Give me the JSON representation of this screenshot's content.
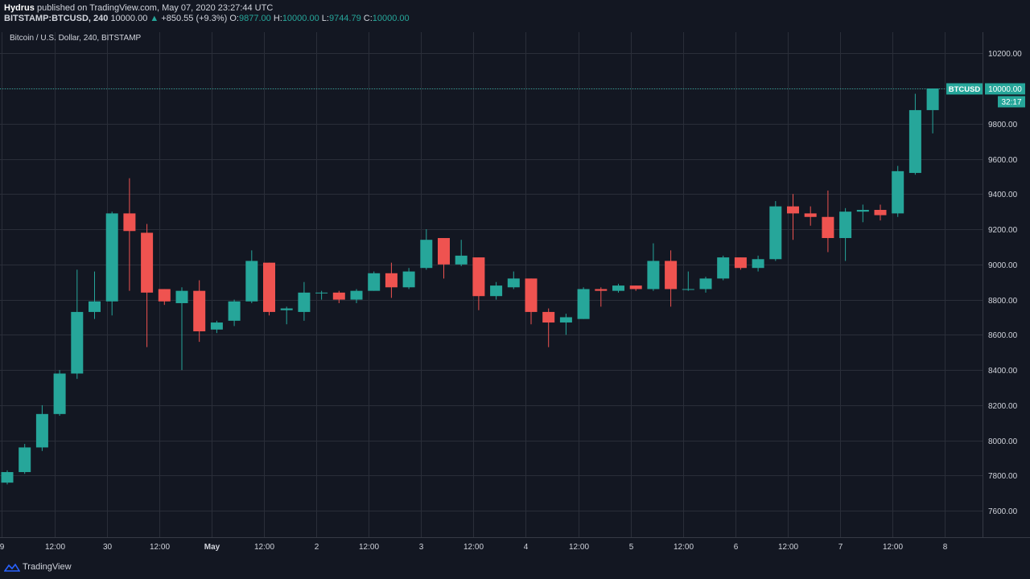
{
  "header": {
    "author": "Hydrus",
    "published": " published on TradingView.com, May 07, 2020 23:27:44 UTC",
    "symbol": "BITSTAMP:BTCUSD, 240",
    "last": "10000.00",
    "arrow": "▲",
    "change": "+850.55 (+9.3%)",
    "o_label": "O:",
    "o_value": "9877.00",
    "h_label": "H:",
    "h_value": "10000.00",
    "l_label": "L:",
    "l_value": "9744.79",
    "c_label": "C:",
    "c_value": "10000.00"
  },
  "chart_title": "Bitcoin / U.S. Dollar, 240, BITSTAMP",
  "price_tag": {
    "symbol": "BTCUSD",
    "value": "10000.00",
    "countdown": "32:17"
  },
  "footer": {
    "brand": "TradingView"
  },
  "colors": {
    "up": "#26a69a",
    "down": "#ef5350",
    "background": "#131722",
    "grid": "#2a2e39"
  },
  "chart_data": {
    "type": "candlestick",
    "ylim": [
      7450,
      10320
    ],
    "yticks": [
      7600,
      7800,
      8000,
      8200,
      8400,
      8600,
      8800,
      9000,
      9200,
      9400,
      9600,
      9800,
      10000,
      10200
    ],
    "ytick_labels": [
      "7600.00",
      "7800.00",
      "8000.00",
      "8200.00",
      "8400.00",
      "8600.00",
      "8800.00",
      "9000.00",
      "9200.00",
      "9400.00",
      "9600.00",
      "9800.00",
      "10000.00",
      "10200.00"
    ],
    "xticks": [
      {
        "i": -0.3,
        "label": "9"
      },
      {
        "i": 2.7,
        "label": "12:00"
      },
      {
        "i": 5.7,
        "label": "30"
      },
      {
        "i": 8.7,
        "label": "12:00"
      },
      {
        "i": 11.7,
        "label": "May"
      },
      {
        "i": 14.7,
        "label": "12:00"
      },
      {
        "i": 17.7,
        "label": "2"
      },
      {
        "i": 20.7,
        "label": "12:00"
      },
      {
        "i": 23.7,
        "label": "3"
      },
      {
        "i": 26.7,
        "label": "12:00"
      },
      {
        "i": 29.7,
        "label": "4"
      },
      {
        "i": 32.7,
        "label": "12:00"
      },
      {
        "i": 35.7,
        "label": "5"
      },
      {
        "i": 38.7,
        "label": "12:00"
      },
      {
        "i": 41.7,
        "label": "6"
      },
      {
        "i": 44.7,
        "label": "12:00"
      },
      {
        "i": 47.7,
        "label": "7"
      },
      {
        "i": 50.7,
        "label": "12:00"
      },
      {
        "i": 53.7,
        "label": "8"
      }
    ],
    "candles": [
      {
        "o": 7760,
        "h": 7830,
        "l": 7750,
        "c": 7820
      },
      {
        "o": 7820,
        "h": 7980,
        "l": 7810,
        "c": 7960
      },
      {
        "o": 7960,
        "h": 8200,
        "l": 7940,
        "c": 8150
      },
      {
        "o": 8150,
        "h": 8400,
        "l": 8140,
        "c": 8380
      },
      {
        "o": 8380,
        "h": 8970,
        "l": 8350,
        "c": 8730
      },
      {
        "o": 8730,
        "h": 8960,
        "l": 8690,
        "c": 8790
      },
      {
        "o": 8790,
        "h": 9300,
        "l": 8710,
        "c": 9290
      },
      {
        "o": 9290,
        "h": 9490,
        "l": 8850,
        "c": 9190
      },
      {
        "o": 9180,
        "h": 9230,
        "l": 8530,
        "c": 8840
      },
      {
        "o": 8860,
        "h": 8860,
        "l": 8770,
        "c": 8790
      },
      {
        "o": 8780,
        "h": 8870,
        "l": 8400,
        "c": 8850
      },
      {
        "o": 8850,
        "h": 8910,
        "l": 8560,
        "c": 8620
      },
      {
        "o": 8630,
        "h": 8680,
        "l": 8610,
        "c": 8670
      },
      {
        "o": 8680,
        "h": 8800,
        "l": 8650,
        "c": 8790
      },
      {
        "o": 8790,
        "h": 9080,
        "l": 8780,
        "c": 9020
      },
      {
        "o": 9010,
        "h": 9010,
        "l": 8710,
        "c": 8730
      },
      {
        "o": 8740,
        "h": 8760,
        "l": 8660,
        "c": 8750
      },
      {
        "o": 8730,
        "h": 8900,
        "l": 8680,
        "c": 8840
      },
      {
        "o": 8840,
        "h": 8850,
        "l": 8800,
        "c": 8840
      },
      {
        "o": 8840,
        "h": 8850,
        "l": 8780,
        "c": 8800
      },
      {
        "o": 8800,
        "h": 8860,
        "l": 8780,
        "c": 8850
      },
      {
        "o": 8850,
        "h": 8960,
        "l": 8850,
        "c": 8950
      },
      {
        "o": 8950,
        "h": 9010,
        "l": 8810,
        "c": 8870
      },
      {
        "o": 8870,
        "h": 8980,
        "l": 8860,
        "c": 8960
      },
      {
        "o": 8980,
        "h": 9200,
        "l": 8970,
        "c": 9140
      },
      {
        "o": 9150,
        "h": 9150,
        "l": 8920,
        "c": 9000
      },
      {
        "o": 9000,
        "h": 9140,
        "l": 8990,
        "c": 9050
      },
      {
        "o": 9040,
        "h": 9040,
        "l": 8740,
        "c": 8820
      },
      {
        "o": 8820,
        "h": 8900,
        "l": 8800,
        "c": 8880
      },
      {
        "o": 8870,
        "h": 8960,
        "l": 8860,
        "c": 8920
      },
      {
        "o": 8920,
        "h": 8920,
        "l": 8660,
        "c": 8730
      },
      {
        "o": 8730,
        "h": 8750,
        "l": 8530,
        "c": 8670
      },
      {
        "o": 8670,
        "h": 8720,
        "l": 8600,
        "c": 8700
      },
      {
        "o": 8690,
        "h": 8870,
        "l": 8690,
        "c": 8860
      },
      {
        "o": 8860,
        "h": 8870,
        "l": 8760,
        "c": 8850
      },
      {
        "o": 8850,
        "h": 8890,
        "l": 8840,
        "c": 8880
      },
      {
        "o": 8880,
        "h": 8880,
        "l": 8850,
        "c": 8860
      },
      {
        "o": 8860,
        "h": 9120,
        "l": 8850,
        "c": 9020
      },
      {
        "o": 9020,
        "h": 9080,
        "l": 8760,
        "c": 8860
      },
      {
        "o": 8860,
        "h": 8960,
        "l": 8850,
        "c": 8860
      },
      {
        "o": 8860,
        "h": 8930,
        "l": 8840,
        "c": 8920
      },
      {
        "o": 8920,
        "h": 9050,
        "l": 8910,
        "c": 9040
      },
      {
        "o": 9040,
        "h": 9040,
        "l": 8970,
        "c": 8980
      },
      {
        "o": 8980,
        "h": 9050,
        "l": 8960,
        "c": 9030
      },
      {
        "o": 9030,
        "h": 9360,
        "l": 9020,
        "c": 9330
      },
      {
        "o": 9330,
        "h": 9400,
        "l": 9140,
        "c": 9290
      },
      {
        "o": 9290,
        "h": 9330,
        "l": 9220,
        "c": 9270
      },
      {
        "o": 9270,
        "h": 9420,
        "l": 9070,
        "c": 9150
      },
      {
        "o": 9150,
        "h": 9320,
        "l": 9020,
        "c": 9300
      },
      {
        "o": 9300,
        "h": 9340,
        "l": 9240,
        "c": 9310
      },
      {
        "o": 9310,
        "h": 9340,
        "l": 9250,
        "c": 9280
      },
      {
        "o": 9290,
        "h": 9560,
        "l": 9270,
        "c": 9530
      },
      {
        "o": 9520,
        "h": 9970,
        "l": 9510,
        "c": 9877
      },
      {
        "o": 9877,
        "h": 10000,
        "l": 9744.79,
        "c": 10000
      }
    ]
  }
}
